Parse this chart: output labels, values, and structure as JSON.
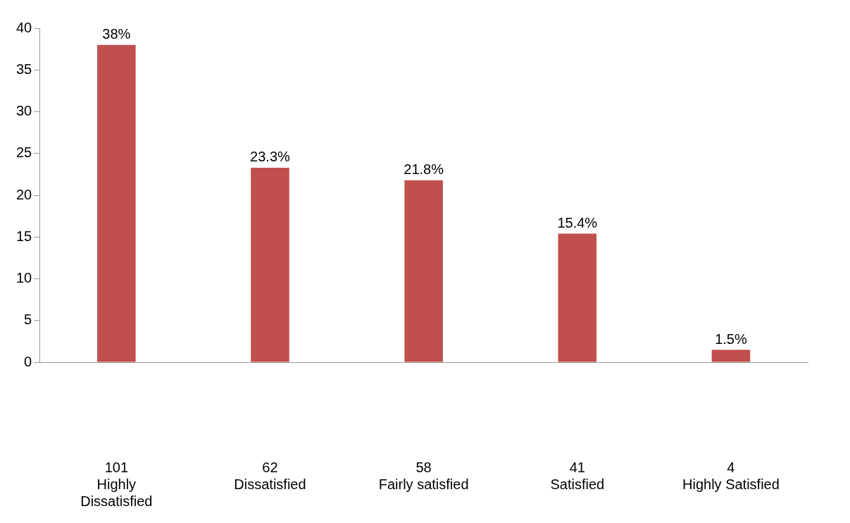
{
  "chart_data": {
    "type": "bar",
    "categories": [
      "101\nHighly\nDissatisfied",
      "62\nDissatisfied",
      "58\nFairly satisfied",
      "41\nSatisfied",
      "4\nHighly Satisfied"
    ],
    "values": [
      38,
      23.3,
      21.8,
      15.4,
      1.5
    ],
    "value_labels": [
      "38%",
      "23.3%",
      "21.8%",
      "15.4%",
      "1.5%"
    ],
    "color": "#c0504d",
    "ylim": [
      0,
      40
    ],
    "yticks": [
      0,
      5,
      10,
      15,
      20,
      25,
      30,
      35,
      40
    ],
    "grid": false,
    "legend": false
  }
}
